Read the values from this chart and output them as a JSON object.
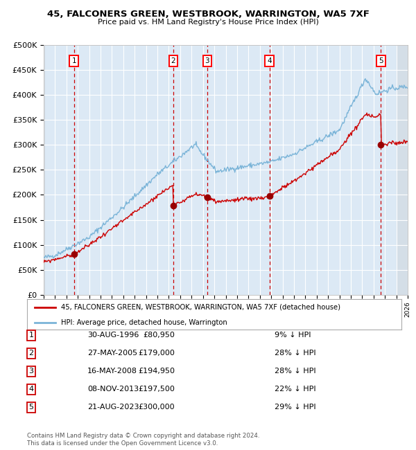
{
  "title1": "45, FALCONERS GREEN, WESTBROOK, WARRINGTON, WA5 7XF",
  "title2": "Price paid vs. HM Land Registry's House Price Index (HPI)",
  "ylim": [
    0,
    500000
  ],
  "yticks": [
    0,
    50000,
    100000,
    150000,
    200000,
    250000,
    300000,
    350000,
    400000,
    450000,
    500000
  ],
  "ytick_labels": [
    "£0",
    "£50K",
    "£100K",
    "£150K",
    "£200K",
    "£250K",
    "£300K",
    "£350K",
    "£400K",
    "£450K",
    "£500K"
  ],
  "bg_color": "#dce9f5",
  "hpi_color": "#7ab4d8",
  "price_color": "#cc0000",
  "marker_color": "#990000",
  "vline_color": "#cc0000",
  "grid_color": "#ffffff",
  "sale_dates_x": [
    1996.66,
    2005.4,
    2008.37,
    2013.85,
    2023.64
  ],
  "sale_prices": [
    80950,
    179000,
    194950,
    197500,
    300000
  ],
  "sale_labels": [
    "1",
    "2",
    "3",
    "4",
    "5"
  ],
  "legend_line1": "45, FALCONERS GREEN, WESTBROOK, WARRINGTON, WA5 7XF (detached house)",
  "legend_line2": "HPI: Average price, detached house, Warrington",
  "table_rows": [
    [
      "1",
      "30-AUG-1996",
      "£80,950",
      "9% ↓ HPI"
    ],
    [
      "2",
      "27-MAY-2005",
      "£179,000",
      "28% ↓ HPI"
    ],
    [
      "3",
      "16-MAY-2008",
      "£194,950",
      "28% ↓ HPI"
    ],
    [
      "4",
      "08-NOV-2013",
      "£197,500",
      "22% ↓ HPI"
    ],
    [
      "5",
      "21-AUG-2023",
      "£300,000",
      "29% ↓ HPI"
    ]
  ],
  "footnote": "Contains HM Land Registry data © Crown copyright and database right 2024.\nThis data is licensed under the Open Government Licence v3.0.",
  "xmin": 1994,
  "xmax": 2026
}
